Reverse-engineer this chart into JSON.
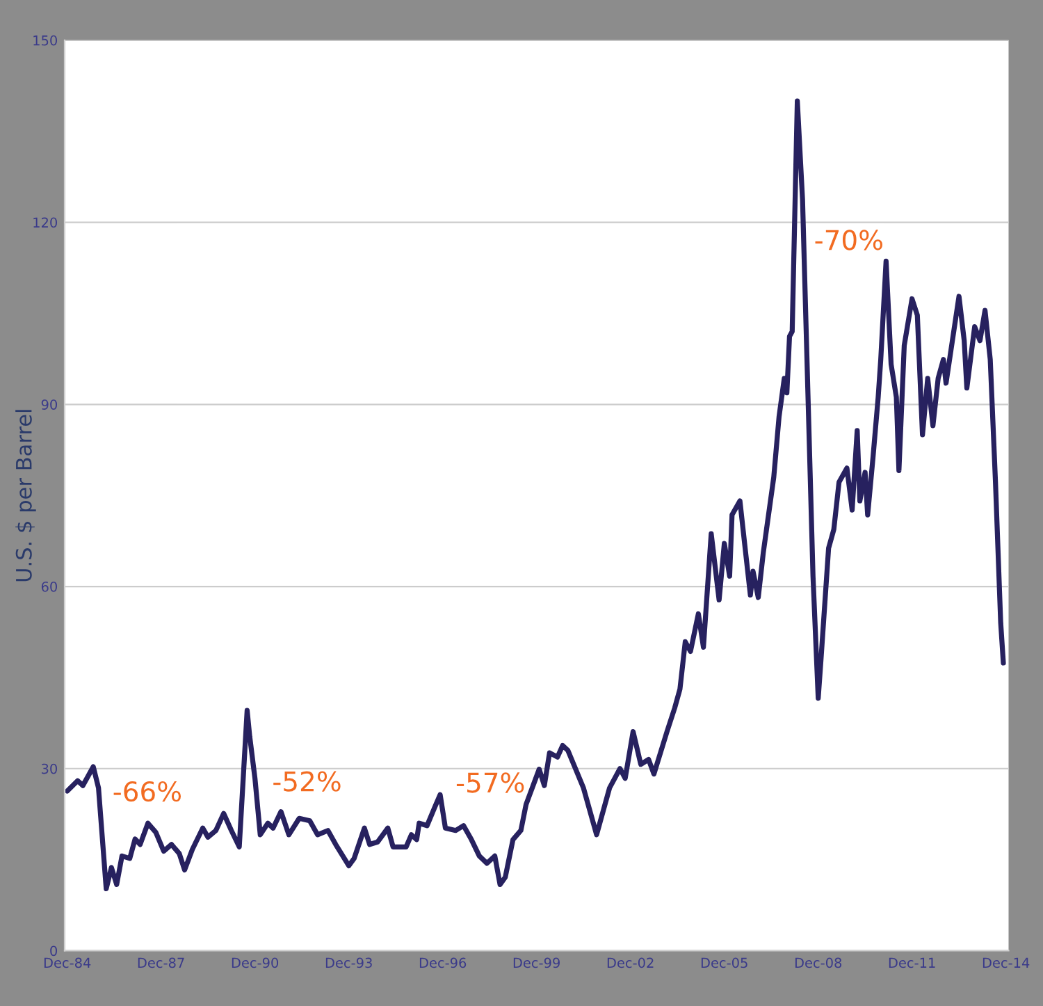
{
  "chart_data": {
    "type": "line",
    "ylabel": "U.S. $ per Barrel",
    "x": [
      "1984-12",
      "1985-04",
      "1985-06",
      "1985-10",
      "1985-12",
      "1986-03",
      "1986-05",
      "1986-07",
      "1986-09",
      "1986-12",
      "1987-02",
      "1987-04",
      "1987-07",
      "1987-10",
      "1988-01",
      "1988-04",
      "1988-07",
      "1988-09",
      "1988-12",
      "1989-04",
      "1989-06",
      "1989-09",
      "1989-12",
      "1990-03",
      "1990-06",
      "1990-09",
      "1990-10",
      "1990-12",
      "1991-02",
      "1991-05",
      "1991-07",
      "1991-10",
      "1992-01",
      "1992-05",
      "1992-09",
      "1992-12",
      "1993-04",
      "1993-07",
      "1993-12",
      "1994-02",
      "1994-06",
      "1994-08",
      "1994-11",
      "1995-03",
      "1995-05",
      "1995-10",
      "1995-12",
      "1996-02",
      "1996-03",
      "1996-06",
      "1996-09",
      "1996-11",
      "1997-01",
      "1997-05",
      "1997-08",
      "1997-11",
      "1998-02",
      "1998-05",
      "1998-08",
      "1998-10",
      "1998-12",
      "1999-03",
      "1999-06",
      "1999-08",
      "2000-01",
      "2000-03",
      "2000-05",
      "2000-08",
      "2000-10",
      "2000-12",
      "2001-06",
      "2001-11",
      "2002-04",
      "2002-08",
      "2002-10",
      "2003-01",
      "2003-04",
      "2003-07",
      "2003-09",
      "2004-02",
      "2004-05",
      "2004-07",
      "2004-09",
      "2004-11",
      "2005-02",
      "2005-04",
      "2005-07",
      "2005-10",
      "2005-12",
      "2006-02",
      "2006-03",
      "2006-06",
      "2006-08",
      "2006-10",
      "2006-11",
      "2007-01",
      "2007-03",
      "2007-07",
      "2007-09",
      "2007-11",
      "2007-12",
      "2008-01",
      "2008-02",
      "2008-04",
      "2008-06",
      "2008-08",
      "2008-10",
      "2008-12",
      "2009-01",
      "2009-04",
      "2009-06",
      "2009-08",
      "2009-11",
      "2010-01",
      "2010-03",
      "2010-04",
      "2010-06",
      "2010-07",
      "2010-09",
      "2010-11",
      "2010-12",
      "2011-02",
      "2011-04",
      "2011-06",
      "2011-07",
      "2011-09",
      "2011-12",
      "2012-02",
      "2012-04",
      "2012-06",
      "2012-08",
      "2012-10",
      "2012-12",
      "2013-01",
      "2013-06",
      "2013-08",
      "2013-09",
      "2013-12",
      "2014-02",
      "2014-04",
      "2014-06",
      "2014-08",
      "2014-10",
      "2014-11"
    ],
    "series": [
      {
        "color": "#27215f",
        "values": [
          26.3,
          28,
          27.2,
          30.3,
          26.8,
          10.2,
          13.7,
          10.9,
          15.6,
          15.2,
          18.4,
          17.5,
          21,
          19.5,
          16.4,
          17.5,
          16,
          13.3,
          16.7,
          20.2,
          18.7,
          19.8,
          22.6,
          19.8,
          17.1,
          39.6,
          35.3,
          28.4,
          19.1,
          21,
          20.2,
          22.9,
          19.1,
          21.8,
          21.4,
          19.1,
          19.8,
          17.5,
          14,
          15.2,
          20.2,
          17.5,
          17.9,
          20.2,
          17.1,
          17.1,
          19.1,
          18.3,
          21,
          20.6,
          23.7,
          25.7,
          20.2,
          19.8,
          20.6,
          18.3,
          15.6,
          14.4,
          15.6,
          10.9,
          12.1,
          18.3,
          19.8,
          24.1,
          29.9,
          27.2,
          32.6,
          31.9,
          33.8,
          33,
          26.8,
          19.1,
          26.8,
          30,
          28.4,
          36.1,
          30.7,
          31.5,
          29.1,
          36.1,
          40,
          43.1,
          50.9,
          49.3,
          55.5,
          50,
          68.7,
          57.8,
          67.1,
          61.7,
          71.8,
          74.1,
          66.3,
          58.6,
          62.5,
          58.2,
          65.6,
          78,
          88,
          94.3,
          91.9,
          101.2,
          102,
          140,
          123.7,
          92.7,
          61.7,
          41.6,
          47.7,
          66.3,
          69.4,
          77.2,
          79.5,
          72.6,
          85.7,
          74.1,
          78.8,
          71.8,
          81.2,
          91.2,
          97.4,
          113.6,
          96.6,
          91.2,
          79.1,
          99.7,
          107.4,
          104.7,
          85,
          94.3,
          86.5,
          94.3,
          97.4,
          93.5,
          107.8,
          100.5,
          92.7,
          102.8,
          100.5,
          105.5,
          97.4,
          77.2,
          54,
          47.4
        ]
      }
    ],
    "xlim": [
      "1984-11",
      "2015-01"
    ],
    "xticks": [
      {
        "value": "1984-12",
        "label": "Dec-84"
      },
      {
        "value": "1987-12",
        "label": "Dec-87"
      },
      {
        "value": "1990-12",
        "label": "Dec-90"
      },
      {
        "value": "1993-12",
        "label": "Dec-93"
      },
      {
        "value": "1996-12",
        "label": "Dec-96"
      },
      {
        "value": "1999-12",
        "label": "Dec-99"
      },
      {
        "value": "2002-12",
        "label": "Dec-02"
      },
      {
        "value": "2005-12",
        "label": "Dec-05"
      },
      {
        "value": "2008-12",
        "label": "Dec-08"
      },
      {
        "value": "2011-12",
        "label": "Dec-11"
      },
      {
        "value": "2014-12",
        "label": "Dec-14"
      }
    ],
    "ylim": [
      0,
      150
    ],
    "yticks": [
      0,
      30,
      60,
      90,
      120,
      150
    ],
    "grid": "y",
    "line_style": "solid",
    "marker": "none",
    "annotations": [
      {
        "text": "-66%",
        "x": "1985-10",
        "y": 30.3
      },
      {
        "text": "-52%",
        "x": "1990-09",
        "y": 39.6
      },
      {
        "text": "-57%",
        "x": "1996-11",
        "y": 25.7
      },
      {
        "text": "-70%",
        "x": "2008-06",
        "y": 123.7
      }
    ]
  }
}
